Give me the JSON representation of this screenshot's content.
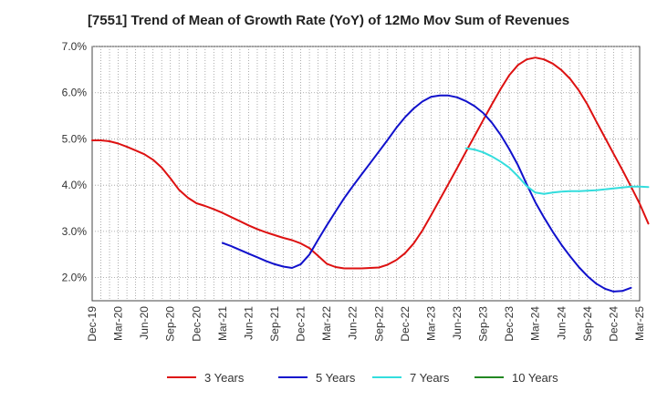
{
  "chart_data": {
    "type": "line",
    "title": "[7551]  Trend of Mean of Growth Rate (YoY) of 12Mo Mov Sum of Revenues",
    "xlabel": "",
    "ylabel": "",
    "y_min": 1.5,
    "y_max": 7.0,
    "y_ticks": [
      2.0,
      3.0,
      4.0,
      5.0,
      6.0,
      7.0
    ],
    "y_tick_labels": [
      "2.0%",
      "3.0%",
      "4.0%",
      "5.0%",
      "6.0%",
      "7.0%"
    ],
    "x_tick_labels": [
      "Dec-19",
      "Mar-20",
      "Jun-20",
      "Sep-20",
      "Dec-20",
      "Mar-21",
      "Jun-21",
      "Sep-21",
      "Dec-21",
      "Mar-22",
      "Jun-22",
      "Sep-22",
      "Dec-22",
      "Mar-23",
      "Jun-23",
      "Sep-23",
      "Dec-23",
      "Mar-24",
      "Jun-24",
      "Sep-24",
      "Dec-24",
      "Mar-25"
    ],
    "grid": true,
    "legend_position": "bottom",
    "series": [
      {
        "name": "3 Years",
        "color": "#dd1111",
        "start_index": 0,
        "values": [
          4.97,
          4.97,
          4.95,
          4.9,
          4.83,
          4.75,
          4.67,
          4.55,
          4.38,
          4.15,
          3.9,
          3.73,
          3.61,
          3.55,
          3.48,
          3.4,
          3.31,
          3.22,
          3.13,
          3.05,
          2.98,
          2.92,
          2.86,
          2.81,
          2.74,
          2.64,
          2.47,
          2.3,
          2.23,
          2.2,
          2.2,
          2.2,
          2.21,
          2.22,
          2.28,
          2.38,
          2.53,
          2.74,
          3.02,
          3.35,
          3.69,
          4.03,
          4.37,
          4.72,
          5.06,
          5.41,
          5.75,
          6.08,
          6.38,
          6.6,
          6.72,
          6.76,
          6.72,
          6.63,
          6.49,
          6.3,
          6.05,
          5.74,
          5.38,
          5.03,
          4.68,
          4.33,
          3.97,
          3.6,
          3.17
        ]
      },
      {
        "name": "5 Years",
        "color": "#1111cc",
        "start_index": 15,
        "values": [
          2.75,
          2.68,
          2.6,
          2.52,
          2.44,
          2.36,
          2.29,
          2.24,
          2.21,
          2.29,
          2.5,
          2.82,
          3.13,
          3.43,
          3.72,
          3.98,
          4.23,
          4.48,
          4.73,
          4.98,
          5.24,
          5.47,
          5.66,
          5.81,
          5.91,
          5.94,
          5.94,
          5.9,
          5.82,
          5.71,
          5.56,
          5.35,
          5.09,
          4.78,
          4.43,
          4.02,
          3.63,
          3.3,
          2.99,
          2.71,
          2.46,
          2.23,
          2.03,
          1.87,
          1.76,
          1.7,
          1.71,
          1.78
        ]
      },
      {
        "name": "7 Years",
        "color": "#33dddd",
        "start_index": 43,
        "values": [
          4.8,
          4.77,
          4.71,
          4.62,
          4.51,
          4.38,
          4.19,
          3.98,
          3.84,
          3.81,
          3.84,
          3.86,
          3.87,
          3.87,
          3.88,
          3.89,
          3.91,
          3.93,
          3.95,
          3.97,
          3.97,
          3.96
        ]
      },
      {
        "name": "10 Years",
        "color": "#228822",
        "start_index": 0,
        "values": []
      }
    ]
  }
}
